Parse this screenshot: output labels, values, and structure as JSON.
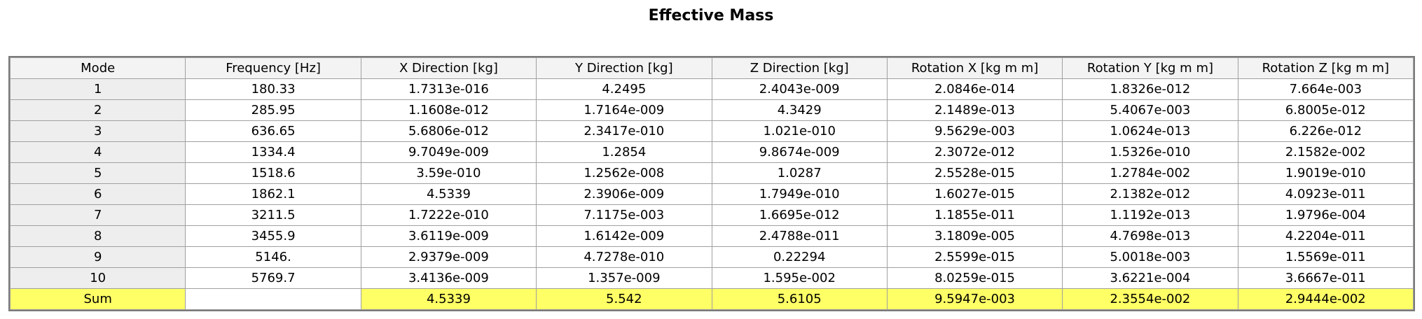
{
  "title": "Effective Mass",
  "columns": [
    "Mode",
    "Frequency [Hz]",
    "X Direction [kg]",
    "Y Direction [kg]",
    "Z Direction [kg]",
    "Rotation X [kg m m]",
    "Rotation Y [kg m m]",
    "Rotation Z [kg m m]"
  ],
  "rows": [
    [
      "1",
      "180.33",
      "1.7313e-016",
      "4.2495",
      "2.4043e-009",
      "2.0846e-014",
      "1.8326e-012",
      "7.664e-003"
    ],
    [
      "2",
      "285.95",
      "1.1608e-012",
      "1.7164e-009",
      "4.3429",
      "2.1489e-013",
      "5.4067e-003",
      "6.8005e-012"
    ],
    [
      "3",
      "636.65",
      "5.6806e-012",
      "2.3417e-010",
      "1.021e-010",
      "9.5629e-003",
      "1.0624e-013",
      "6.226e-012"
    ],
    [
      "4",
      "1334.4",
      "9.7049e-009",
      "1.2854",
      "9.8674e-009",
      "2.3072e-012",
      "1.5326e-010",
      "2.1582e-002"
    ],
    [
      "5",
      "1518.6",
      "3.59e-010",
      "1.2562e-008",
      "1.0287",
      "2.5528e-015",
      "1.2784e-002",
      "1.9019e-010"
    ],
    [
      "6",
      "1862.1",
      "4.5339",
      "2.3906e-009",
      "1.7949e-010",
      "1.6027e-015",
      "2.1382e-012",
      "4.0923e-011"
    ],
    [
      "7",
      "3211.5",
      "1.7222e-010",
      "7.1175e-003",
      "1.6695e-012",
      "1.1855e-011",
      "1.1192e-013",
      "1.9796e-004"
    ],
    [
      "8",
      "3455.9",
      "3.6119e-009",
      "1.6142e-009",
      "2.4788e-011",
      "3.1809e-005",
      "4.7698e-013",
      "4.2204e-011"
    ],
    [
      "9",
      "5146.",
      "2.9379e-009",
      "4.7278e-010",
      "0.22294",
      "2.5599e-015",
      "5.0018e-003",
      "1.5569e-011"
    ],
    [
      "10",
      "5769.7",
      "3.4136e-009",
      "1.357e-009",
      "1.595e-002",
      "8.0259e-015",
      "3.6221e-004",
      "3.6667e-011"
    ]
  ],
  "sum_row": [
    "Sum",
    "",
    "4.5339",
    "5.542",
    "5.6105",
    "9.5947e-003",
    "2.3554e-002",
    "2.9444e-002"
  ],
  "colors": {
    "sum_highlight": "#ffff66",
    "header_bg": "#f3f3f3"
  }
}
